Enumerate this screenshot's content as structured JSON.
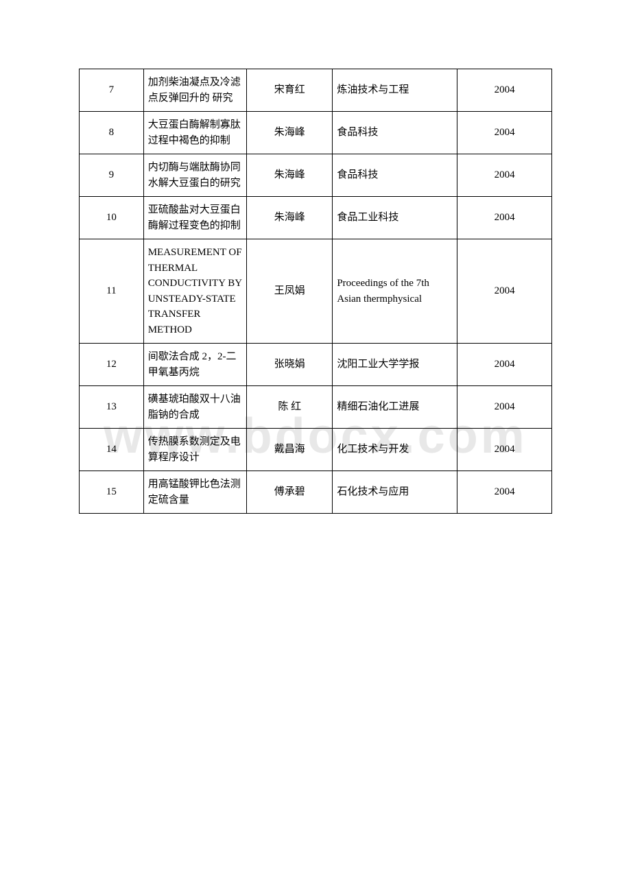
{
  "watermark": "www.bdocx.com",
  "rows": [
    {
      "num": "7",
      "title": "加剂柴油凝点及冷滤点反弹回升的 研究",
      "author": "宋育红",
      "journal": "炼油技术与工程",
      "year": "2004"
    },
    {
      "num": "8",
      "title": "大豆蛋白酶解制寡肽过程中褐色的抑制",
      "author": "朱海峰",
      "journal": "食品科技",
      "year": "2004"
    },
    {
      "num": "9",
      "title": "内切酶与端肽酶协同水解大豆蛋白的研究",
      "author": "朱海峰",
      "journal": "食品科技",
      "year": "2004"
    },
    {
      "num": "10",
      "title": "亚硫酸盐对大豆蛋白酶解过程变色的抑制",
      "author": "朱海峰",
      "journal": "食品工业科技",
      "year": "2004"
    },
    {
      "num": "11",
      "title": "MEASUREMENT OF THERMAL CONDUCTIVITY BY UNSTEADY-STATE TRANSFER METHOD",
      "author": "王凤娟",
      "journal": "Proceedings of the 7th Asian thermphysical",
      "year": "2004"
    },
    {
      "num": "12",
      "title": "间歇法合成 2，2-二甲氧基丙烷",
      "author": "张晓娟",
      "journal": "沈阳工业大学学报",
      "year": "2004"
    },
    {
      "num": "13",
      "title": "磺基琥珀酸双十八油脂钠的合成",
      "author": "陈 红",
      "journal": "精细石油化工进展",
      "year": "2004"
    },
    {
      "num": "14",
      "title": "传热膜系数测定及电算程序设计",
      "author": "戴昌海",
      "journal": "化工技术与开发",
      "year": "2004"
    },
    {
      "num": "15",
      "title": "用高锰酸钾比色法测定硫含量",
      "author": "傅承碧",
      "journal": "石化技术与应用",
      "year": "2004"
    }
  ]
}
